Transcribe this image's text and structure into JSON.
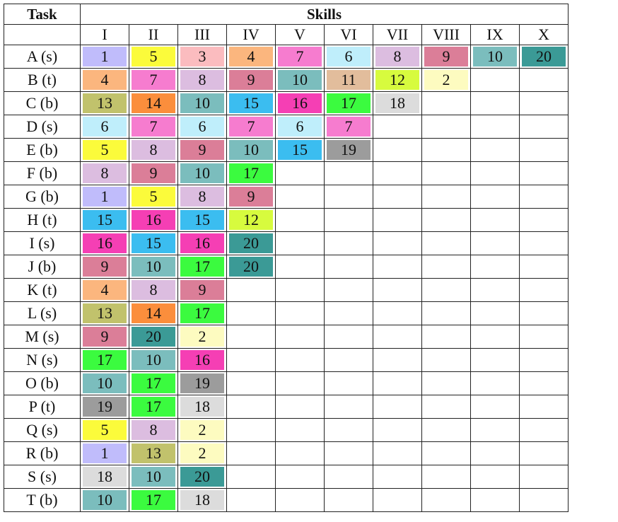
{
  "header": {
    "task": "Task",
    "skills": "Skills"
  },
  "skill_columns": [
    "I",
    "II",
    "III",
    "IV",
    "V",
    "VI",
    "VII",
    "VIII",
    "IX",
    "X"
  ],
  "colors": {
    "1": "#c0bcfb",
    "2": "#fdfbc0",
    "3": "#fbbcbf",
    "4": "#fbb67e",
    "5": "#fbfb3b",
    "6": "#bfeefb",
    "7": "#f67ccf",
    "8": "#dcbde0",
    "9": "#db7e98",
    "10": "#7bbdbd",
    "11": "#e2bd9c",
    "12": "#d7fb3e",
    "13": "#c1c26c",
    "14": "#fb8e3c",
    "15": "#3bbdf0",
    "16": "#f53fb4",
    "17": "#3bfb3f",
    "18": "#dcdcdc",
    "19": "#9c9c9c",
    "20": "#3b9a96"
  },
  "rows": [
    {
      "task": "A (s)",
      "skills": [
        "1",
        "5",
        "3",
        "4",
        "7",
        "6",
        "8",
        "9",
        "10",
        "20"
      ]
    },
    {
      "task": "B (t)",
      "skills": [
        "4",
        "7",
        "8",
        "9",
        "10",
        "11",
        "12",
        "2"
      ]
    },
    {
      "task": "C (b)",
      "skills": [
        "13",
        "14",
        "10",
        "15",
        "16",
        "17",
        "18"
      ]
    },
    {
      "task": "D (s)",
      "skills": [
        "6",
        "7",
        "6",
        "7",
        "6",
        "7"
      ]
    },
    {
      "task": "E (b)",
      "skills": [
        "5",
        "8",
        "9",
        "10",
        "15",
        "19"
      ]
    },
    {
      "task": "F (b)",
      "skills": [
        "8",
        "9",
        "10",
        "17"
      ]
    },
    {
      "task": "G (b)",
      "skills": [
        "1",
        "5",
        "8",
        "9"
      ]
    },
    {
      "task": "H (t)",
      "skills": [
        "15",
        "16",
        "15",
        "12"
      ]
    },
    {
      "task": "I (s)",
      "skills": [
        "16",
        "15",
        "16",
        "20"
      ]
    },
    {
      "task": "J (b)",
      "skills": [
        "9",
        "10",
        "17",
        "20"
      ]
    },
    {
      "task": "K (t)",
      "skills": [
        "4",
        "8",
        "9"
      ]
    },
    {
      "task": "L (s)",
      "skills": [
        "13",
        "14",
        "17"
      ]
    },
    {
      "task": "M (s)",
      "skills": [
        "9",
        "20",
        "2"
      ]
    },
    {
      "task": "N (s)",
      "skills": [
        "17",
        "10",
        "16"
      ]
    },
    {
      "task": "O (b)",
      "skills": [
        "10",
        "17",
        "19"
      ]
    },
    {
      "task": "P (t)",
      "skills": [
        "19",
        "17",
        "18"
      ]
    },
    {
      "task": "Q (s)",
      "skills": [
        "5",
        "8",
        "2"
      ]
    },
    {
      "task": "R (b)",
      "skills": [
        "1",
        "13",
        "2"
      ]
    },
    {
      "task": "S (s)",
      "skills": [
        "18",
        "10",
        "20"
      ]
    },
    {
      "task": "T (b)",
      "skills": [
        "10",
        "17",
        "18"
      ]
    }
  ]
}
